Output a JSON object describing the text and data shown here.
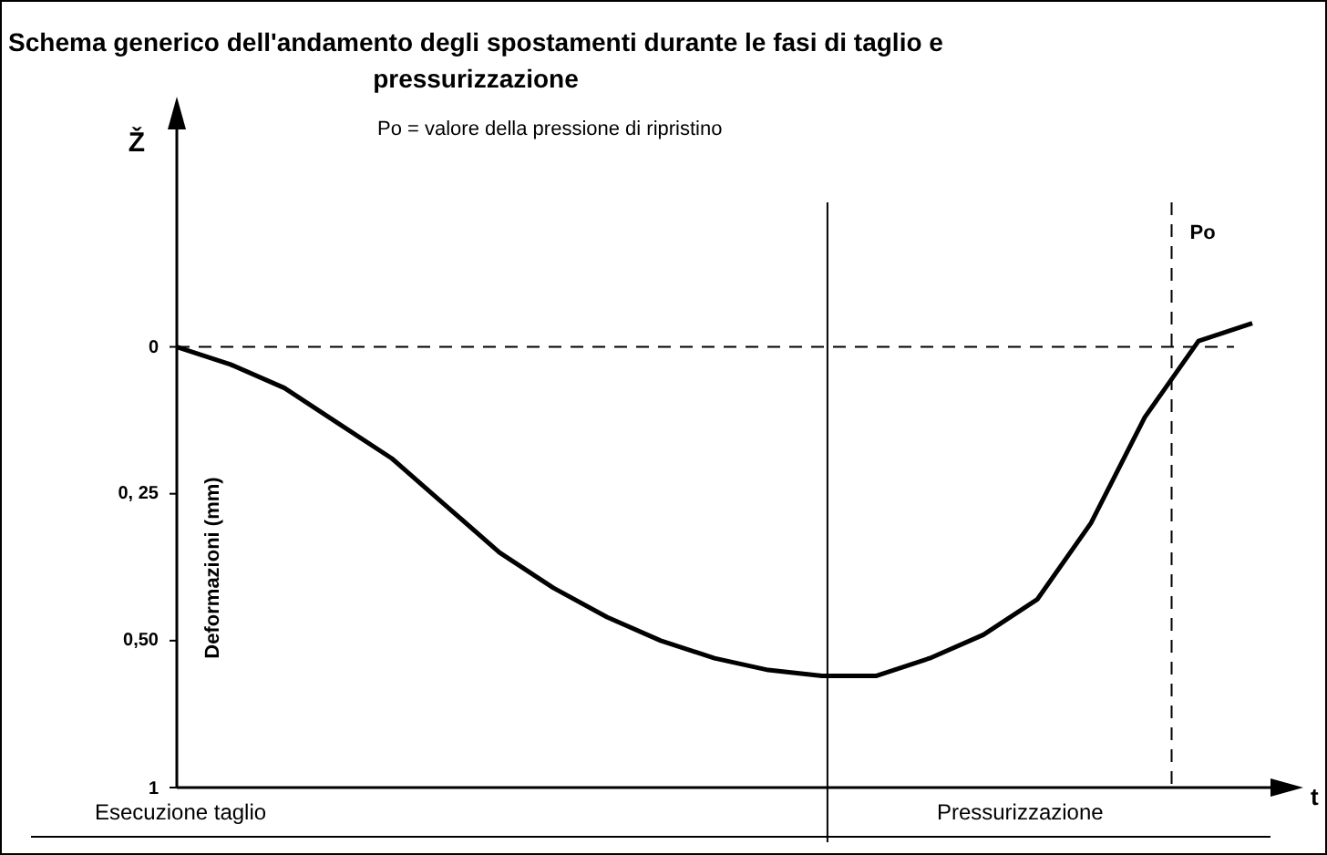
{
  "chart_data": {
    "type": "line",
    "title": "Schema generico dell'andamento degli spostamenti durante le fasi di taglio e pressurizzazione",
    "ylabel": "Deformazioni (mm)",
    "xlabel": "t",
    "annotations": [
      "Ž",
      "Po = valore della pressione di ripristino",
      "Esecuzione taglio",
      "Pressurizzazione",
      "Po"
    ],
    "categories": [
      null,
      null,
      null,
      null,
      null,
      null,
      null,
      null,
      null,
      null,
      null,
      null,
      null,
      null,
      null,
      null,
      null,
      null,
      null,
      null,
      null
    ],
    "series": [
      {
        "color": "#000000",
        "values": [
          0,
          0.03,
          0.07,
          0.13,
          0.19,
          0.27,
          0.35,
          0.41,
          0.46,
          0.5,
          0.53,
          0.55,
          0.56,
          0.56,
          0.53,
          0.49,
          0.43,
          0.3,
          0.12,
          -0.01,
          -0.04
        ]
      }
    ],
    "ylim": [
      0.75,
      -0.37
    ],
    "yticks": [
      0,
      {
        "value": 0.25,
        "label": "0, 25"
      },
      {
        "value": 0.5,
        "label": "0,50"
      },
      {
        "value": 0.75,
        "label": "1"
      }
    ],
    "tick_labels": "y",
    "grid": false,
    "legend": false,
    "marker": "none",
    "line_style": "solid",
    "ref_lines": [
      {
        "axis": "y",
        "value": 0,
        "line_style": "dashed",
        "color": "#000000"
      }
    ]
  }
}
